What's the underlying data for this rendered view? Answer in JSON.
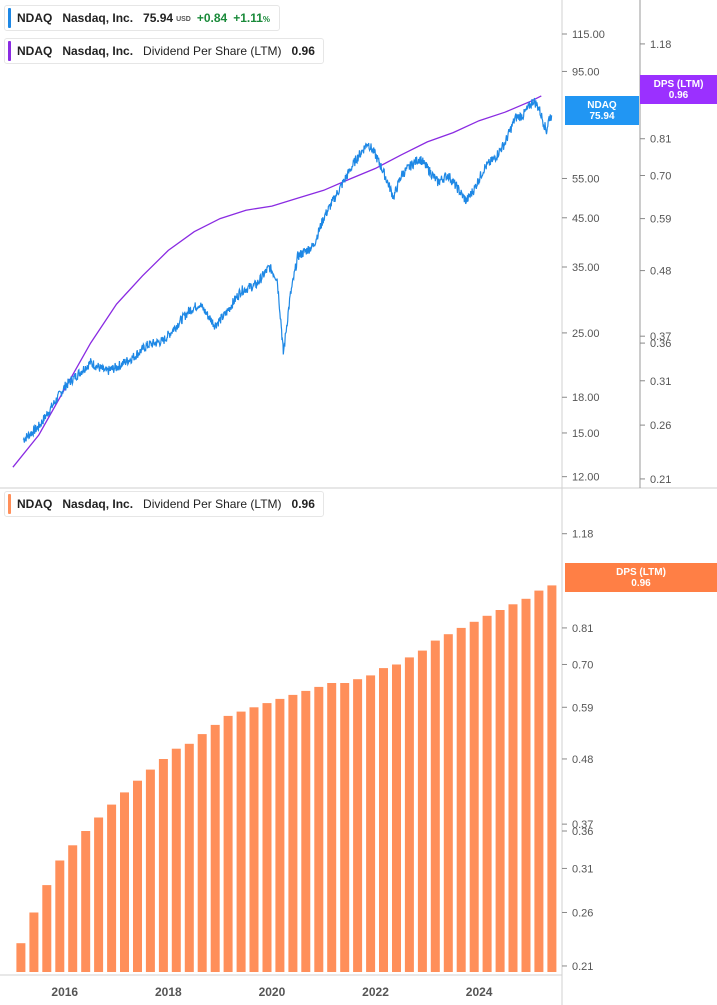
{
  "legends": {
    "price": {
      "symbol": "NDAQ",
      "name": "Nasdaq, Inc.",
      "price": "75.94",
      "currency": "USD",
      "change": "+0.84",
      "change_pct": "+1.11",
      "pct_sign": "%"
    },
    "dps_top": {
      "symbol": "NDAQ",
      "name": "Nasdaq, Inc.",
      "metric": "Dividend Per Share (LTM)",
      "value": "0.96"
    },
    "dps_bottom": {
      "symbol": "NDAQ",
      "name": "Nasdaq, Inc.",
      "metric": "Dividend Per Share (LTM)",
      "value": "0.96"
    }
  },
  "tags": {
    "price": {
      "symbol": "NDAQ",
      "value": "75.94"
    },
    "dps_top": {
      "label": "DPS (LTM)",
      "value": "0.96"
    },
    "dps_bottom": {
      "label": "DPS (LTM)",
      "value": "0.96"
    }
  },
  "colors": {
    "price": "#1e88e5",
    "dps_line": "#8a2be2",
    "bar": "#ff8f5a",
    "price_tag": "#2196f3",
    "dps_tag": "#9b30ff",
    "bar_tag": "#ff7f45"
  },
  "chart_data": [
    {
      "type": "line",
      "series": [
        {
          "name": "Nasdaq, Inc.",
          "axis": "left",
          "x": [
            2015.2,
            2015.5,
            2015.8,
            2016.0,
            2016.2,
            2016.5,
            2016.8,
            2017.0,
            2017.3,
            2017.6,
            2017.9,
            2018.1,
            2018.4,
            2018.6,
            2018.9,
            2019.1,
            2019.4,
            2019.7,
            2019.95,
            2020.1,
            2020.18,
            2020.22,
            2020.35,
            2020.5,
            2020.8,
            2021.0,
            2021.3,
            2021.6,
            2021.85,
            2022.0,
            2022.15,
            2022.35,
            2022.5,
            2022.7,
            2022.85,
            2023.0,
            2023.2,
            2023.4,
            2023.6,
            2023.75,
            2023.9,
            2024.1,
            2024.3,
            2024.5,
            2024.7,
            2024.85,
            2025.05,
            2025.15,
            2025.3,
            2025.35,
            2025.4
          ],
          "values": [
            14.5,
            15.5,
            17.5,
            19.0,
            20.0,
            21.5,
            20.5,
            21.0,
            22.0,
            23.5,
            24.0,
            25.5,
            28.0,
            29.0,
            26.0,
            27.5,
            31.0,
            32.0,
            35.0,
            33.0,
            26.0,
            22.5,
            30.0,
            37.0,
            39.0,
            45.0,
            52.0,
            60.0,
            66.0,
            62.0,
            57.0,
            50.0,
            56.0,
            59.0,
            61.0,
            58.0,
            54.0,
            56.0,
            52.0,
            49.0,
            52.0,
            58.0,
            61.0,
            66.0,
            75.0,
            76.0,
            82.0,
            79.0,
            70.0,
            75.0,
            75.94
          ]
        },
        {
          "name": "Dividend Per Share (LTM)",
          "axis": "right",
          "x": [
            2015.0,
            2015.5,
            2016.0,
            2016.5,
            2017.0,
            2017.5,
            2018.0,
            2018.5,
            2019.0,
            2019.5,
            2020.0,
            2020.5,
            2021.0,
            2021.5,
            2022.0,
            2022.5,
            2023.0,
            2023.5,
            2024.0,
            2024.5,
            2025.0,
            2025.2
          ],
          "values": [
            0.22,
            0.25,
            0.3,
            0.36,
            0.42,
            0.47,
            0.52,
            0.56,
            0.59,
            0.61,
            0.62,
            0.64,
            0.66,
            0.69,
            0.72,
            0.76,
            0.8,
            0.83,
            0.87,
            0.9,
            0.94,
            0.96
          ]
        }
      ],
      "left_axis": {
        "scale": "log",
        "ticks": [
          "115.00",
          "95.00",
          "55.00",
          "45.00",
          "35.00",
          "25.00",
          "18.00",
          "15.00",
          "12.00"
        ],
        "range": [
          11.5,
          130
        ]
      },
      "right_axis": {
        "scale": "log",
        "ticks": [
          "1.18",
          "0.81",
          "0.70",
          "0.59",
          "0.48",
          "0.37",
          "0.36",
          "0.31",
          "0.26",
          "0.21"
        ],
        "range": [
          0.205,
          1.35
        ]
      }
    },
    {
      "type": "bar",
      "series": [
        {
          "name": "Dividend Per Share (LTM)",
          "x": [
            2015.0,
            2015.25,
            2015.5,
            2015.75,
            2016.0,
            2016.25,
            2016.5,
            2016.75,
            2017.0,
            2017.25,
            2017.5,
            2017.75,
            2018.0,
            2018.25,
            2018.5,
            2018.75,
            2019.0,
            2019.25,
            2019.5,
            2019.75,
            2020.0,
            2020.25,
            2020.5,
            2020.75,
            2021.0,
            2021.25,
            2021.5,
            2021.75,
            2022.0,
            2022.25,
            2022.5,
            2022.75,
            2023.0,
            2023.25,
            2023.5,
            2023.75,
            2024.0,
            2024.25,
            2024.5,
            2024.75,
            2025.0,
            2025.25
          ],
          "values": [
            0.23,
            0.26,
            0.29,
            0.32,
            0.34,
            0.36,
            0.38,
            0.4,
            0.42,
            0.44,
            0.46,
            0.48,
            0.5,
            0.51,
            0.53,
            0.55,
            0.57,
            0.58,
            0.59,
            0.6,
            0.61,
            0.62,
            0.63,
            0.64,
            0.65,
            0.65,
            0.66,
            0.67,
            0.69,
            0.7,
            0.72,
            0.74,
            0.77,
            0.79,
            0.81,
            0.83,
            0.85,
            0.87,
            0.89,
            0.91,
            0.94,
            0.96
          ]
        }
      ],
      "right_axis": {
        "scale": "log",
        "ticks": [
          "1.18",
          "0.81",
          "0.70",
          "0.59",
          "0.48",
          "0.37",
          "0.36",
          "0.31",
          "0.26",
          "0.21"
        ],
        "range": [
          0.205,
          1.35
        ]
      }
    }
  ],
  "x_axis": {
    "ticks": [
      "2016",
      "2018",
      "2020",
      "2022",
      "2024"
    ],
    "range": [
      2014.75,
      2025.6
    ]
  }
}
